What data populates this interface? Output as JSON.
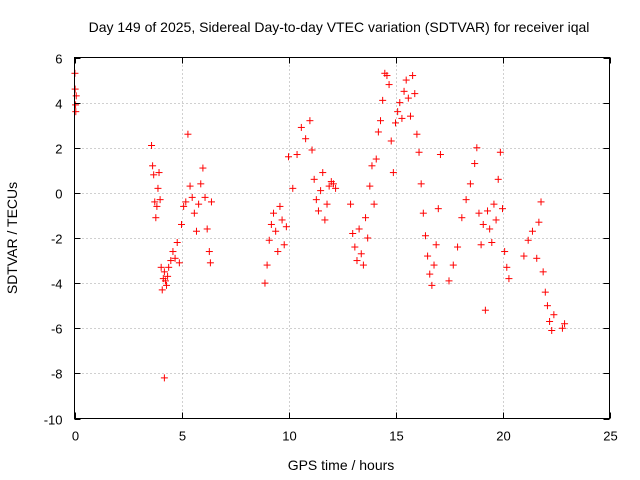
{
  "chart_data": {
    "type": "scatter",
    "title": "Day 149 of 2025, Sidereal Day-to-day VTEC variation (SDTVAR) for receiver iqal",
    "xlabel": "GPS time / hours",
    "ylabel": "SDTVAR / TECUs",
    "xlim": [
      0,
      25
    ],
    "ylim": [
      -10,
      6
    ],
    "xticks": [
      0,
      5,
      10,
      15,
      20,
      25
    ],
    "yticks": [
      -10,
      -8,
      -6,
      -4,
      -2,
      0,
      2,
      4,
      6
    ],
    "grid": true,
    "marker": "+",
    "color": "#ff0000",
    "series": [
      {
        "name": "SDTVAR",
        "x": [
          0.02,
          0.03,
          0.05,
          0.06,
          0.08,
          3.6,
          3.65,
          3.7,
          3.75,
          3.8,
          3.85,
          3.9,
          3.95,
          4.0,
          4.05,
          4.1,
          4.15,
          4.2,
          4.25,
          4.3,
          4.35,
          4.4,
          4.5,
          4.6,
          4.7,
          4.8,
          4.9,
          5.0,
          4.2,
          5.1,
          5.2,
          5.3,
          5.4,
          5.5,
          5.6,
          5.7,
          5.8,
          5.9,
          6.0,
          6.1,
          6.2,
          6.3,
          6.35,
          6.4,
          8.9,
          9.0,
          9.1,
          9.2,
          9.3,
          9.4,
          9.5,
          9.6,
          9.7,
          9.8,
          9.9,
          10.0,
          10.2,
          10.4,
          10.6,
          10.8,
          11.0,
          11.1,
          11.2,
          11.3,
          11.4,
          11.5,
          11.6,
          11.7,
          11.8,
          11.9,
          12.0,
          12.1,
          12.2,
          12.9,
          13.0,
          13.1,
          13.2,
          13.3,
          13.4,
          13.5,
          13.6,
          13.7,
          13.8,
          13.9,
          14.0,
          14.1,
          14.2,
          14.3,
          14.4,
          14.5,
          14.6,
          14.7,
          14.8,
          14.9,
          15.0,
          15.1,
          15.2,
          15.3,
          15.4,
          15.5,
          15.6,
          15.7,
          15.8,
          15.9,
          16.0,
          16.1,
          16.2,
          16.3,
          16.4,
          16.5,
          16.6,
          16.7,
          16.8,
          16.9,
          17.0,
          17.1,
          17.5,
          17.7,
          17.9,
          18.1,
          18.3,
          18.5,
          18.7,
          18.8,
          18.9,
          19.0,
          19.1,
          19.2,
          19.3,
          19.4,
          19.5,
          19.6,
          19.7,
          19.8,
          19.9,
          20.0,
          20.1,
          20.2,
          20.3,
          21.0,
          21.2,
          21.4,
          21.6,
          21.7,
          21.8,
          21.9,
          22.0,
          22.1,
          22.2,
          22.3,
          22.4,
          22.8,
          22.9
        ],
        "y": [
          5.3,
          4.6,
          3.9,
          3.6,
          4.3,
          2.1,
          1.2,
          0.8,
          -0.4,
          -1.1,
          -0.6,
          0.2,
          0.9,
          -0.3,
          -3.3,
          -4.3,
          -3.8,
          -3.5,
          -3.9,
          -4.1,
          -3.7,
          -3.3,
          -3.0,
          -2.6,
          -2.9,
          -2.2,
          -3.1,
          -1.4,
          -8.2,
          -0.6,
          -0.4,
          2.6,
          0.3,
          -0.2,
          -0.9,
          -1.7,
          -0.5,
          0.4,
          1.1,
          -0.2,
          -1.6,
          -2.6,
          -3.1,
          -0.4,
          -4.0,
          -3.2,
          -2.1,
          -1.4,
          -0.9,
          -1.7,
          -2.6,
          -0.6,
          -1.2,
          -2.3,
          -1.5,
          1.6,
          0.2,
          1.7,
          2.9,
          2.4,
          3.2,
          1.9,
          0.6,
          -0.3,
          -0.8,
          0.1,
          0.9,
          -1.2,
          -0.5,
          0.3,
          0.5,
          0.4,
          0.2,
          -0.5,
          -1.8,
          -2.4,
          -3.0,
          -1.6,
          -2.7,
          -3.2,
          -1.1,
          -2.0,
          0.3,
          1.2,
          -0.5,
          1.5,
          2.7,
          3.2,
          4.1,
          5.3,
          5.2,
          4.8,
          2.3,
          0.9,
          3.1,
          3.6,
          4.0,
          3.3,
          4.5,
          5.0,
          4.2,
          3.4,
          5.2,
          4.4,
          2.6,
          1.8,
          0.4,
          -0.9,
          -1.9,
          -2.8,
          -3.6,
          -4.1,
          -3.2,
          -2.3,
          -0.7,
          1.7,
          -3.9,
          -3.2,
          -2.4,
          -1.1,
          -0.3,
          0.4,
          1.3,
          2.0,
          -0.9,
          -2.3,
          -1.4,
          -5.2,
          -0.8,
          -1.6,
          -2.2,
          -0.5,
          -1.2,
          0.6,
          1.8,
          -0.7,
          -2.6,
          -3.3,
          -3.8,
          -2.8,
          -2.1,
          -1.7,
          -2.9,
          -1.3,
          -0.4,
          -3.5,
          -4.4,
          -5.0,
          -5.7,
          -6.1,
          -5.4,
          -6.0,
          -5.8
        ]
      }
    ]
  }
}
